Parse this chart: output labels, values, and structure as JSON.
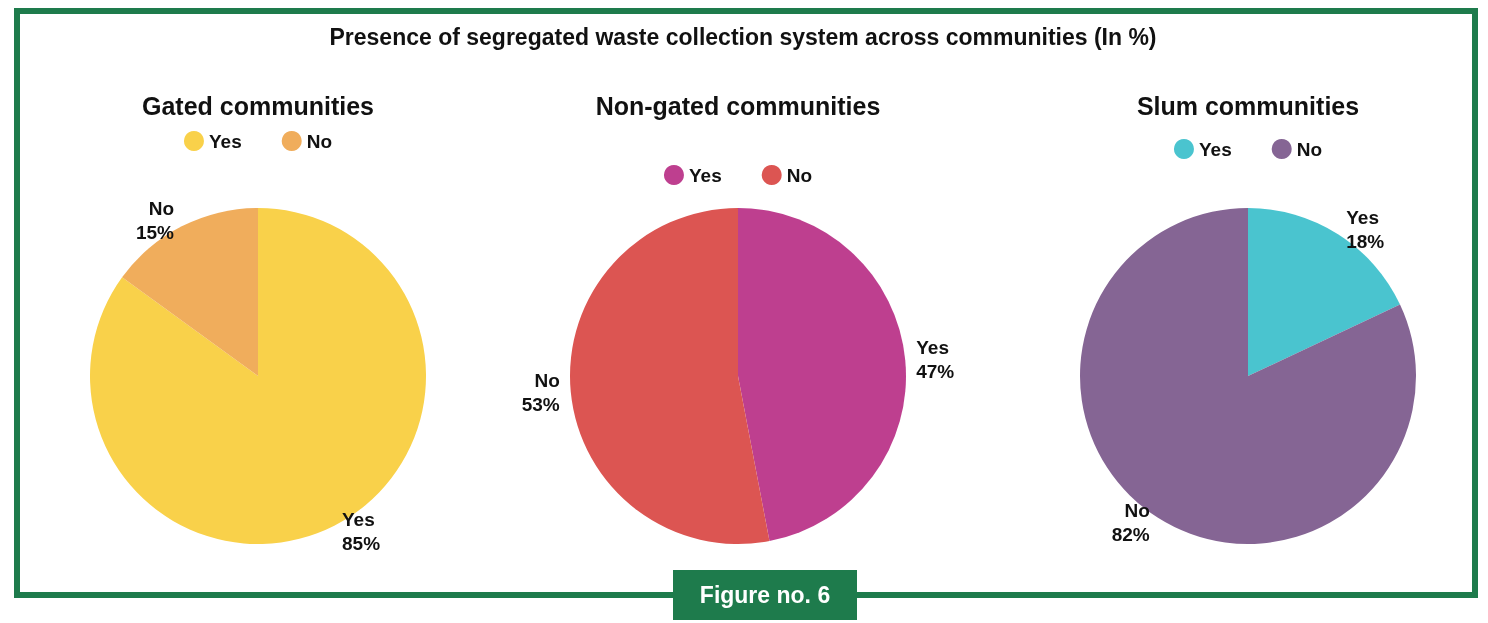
{
  "chart_data": [
    {
      "type": "other",
      "title": "Presence of segregated waste collection system across communities (In %)",
      "annotations": [
        "Figure no. 6"
      ]
    },
    {
      "type": "pie",
      "title": "Gated communities",
      "categories": [
        "Yes",
        "No"
      ],
      "values": [
        85,
        15
      ],
      "colors": [
        "#f9d14a",
        "#f0ad5c"
      ],
      "value_labels": [
        "85%",
        "15%"
      ],
      "legend": "top"
    },
    {
      "type": "pie",
      "title": "Non-gated communities",
      "categories": [
        "Yes",
        "No"
      ],
      "values": [
        47,
        53
      ],
      "colors": [
        "#be3f8f",
        "#dc5552"
      ],
      "value_labels": [
        "47%",
        "53%"
      ],
      "legend": "top"
    },
    {
      "type": "pie",
      "title": "Slum communities",
      "categories": [
        "Yes",
        "No"
      ],
      "values": [
        18,
        82
      ],
      "colors": [
        "#4ac4cf",
        "#856594"
      ],
      "value_labels": [
        "18%",
        "82%"
      ],
      "legend": "top"
    }
  ]
}
